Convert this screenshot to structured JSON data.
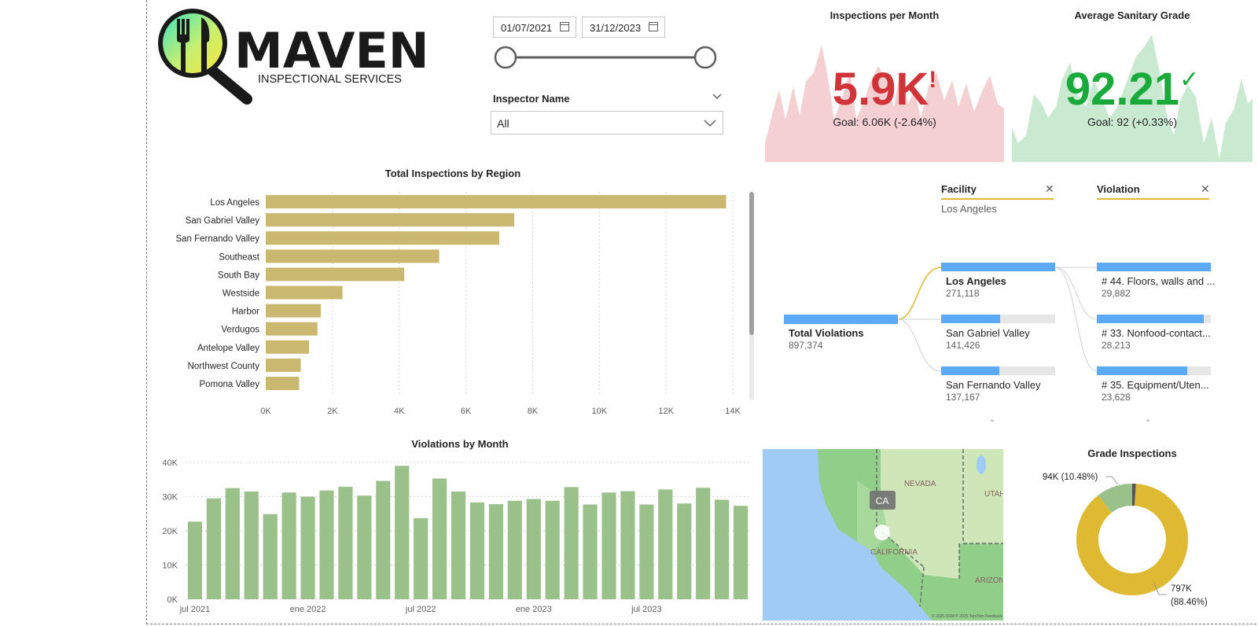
{
  "logo": {
    "name": "MAVEN",
    "tagline": "INSPECTIONAL SERVICES"
  },
  "filters": {
    "date_start": "01/07/2021",
    "date_end": "31/12/2023",
    "inspector_label": "Inspector Name",
    "inspector_value": "All"
  },
  "kpi_inspections": {
    "title": "Inspections per Month",
    "value": "5.9K",
    "status": "!",
    "goal": "Goal: 6.06K (-2.64%)",
    "color": "#d13438",
    "bg": "#f4d0d3"
  },
  "kpi_grade": {
    "title": "Average Sanitary Grade",
    "value": "92.21",
    "status": "✓",
    "goal": "Goal: 92 (+0.33%)",
    "color": "#1aaa3c",
    "bg": "#c9e9d0"
  },
  "decomp": {
    "facility_header": "Facility",
    "facility_filter": "Los Angeles",
    "violation_header": "Violation",
    "root": {
      "label": "Total Violations",
      "value": "897,374"
    },
    "facilities": [
      {
        "label": "Los Angeles",
        "value": "271,118",
        "fill": 1.0
      },
      {
        "label": "San Gabriel Valley",
        "value": "141,426",
        "fill": 0.52
      },
      {
        "label": "San Fernando Valley",
        "value": "137,167",
        "fill": 0.51
      }
    ],
    "violations": [
      {
        "label": "# 44. Floors, walls and ...",
        "value": "29,882",
        "fill": 1.0
      },
      {
        "label": "# 33. Nonfood-contact...",
        "value": "28,213",
        "fill": 0.94
      },
      {
        "label": "# 35. Equipment/Uten...",
        "value": "23,628",
        "fill": 0.79
      }
    ]
  },
  "map": {
    "labels": [
      "NEVADA",
      "UTAH",
      "CALIFORNIA",
      "ARIZON"
    ],
    "marker": "CA",
    "credit": "© 2025 OSM © 2025 TomTom  Feedback"
  },
  "chart_data": [
    {
      "type": "bar",
      "orientation": "horizontal",
      "title": "Total Inspections by Region",
      "categories": [
        "Los Angeles",
        "San Gabriel Valley",
        "San Fernando Valley",
        "Southeast",
        "South Bay",
        "Westside",
        "Harbor",
        "Verdugos",
        "Antelope Valley",
        "Northwest County",
        "Pomona Valley"
      ],
      "values": [
        13800,
        7450,
        7000,
        5200,
        4150,
        2300,
        1650,
        1550,
        1300,
        1050,
        1000
      ],
      "xlim": [
        0,
        14000
      ],
      "xticks": [
        "0K",
        "2K",
        "4K",
        "6K",
        "8K",
        "10K",
        "12K",
        "14K"
      ],
      "color": "#cbb870",
      "grid": true
    },
    {
      "type": "bar",
      "title": "Violations by Month",
      "categories": [
        "jul 2021",
        "ago 2021",
        "sep 2021",
        "oct 2021",
        "nov 2021",
        "dic 2021",
        "ene 2022",
        "feb 2022",
        "mar 2022",
        "abr 2022",
        "may 2022",
        "jun 2022",
        "jul 2022",
        "ago 2022",
        "sep 2022",
        "oct 2022",
        "nov 2022",
        "dic 2022",
        "ene 2023",
        "feb 2023",
        "mar 2023",
        "abr 2023",
        "may 2023",
        "jun 2023",
        "jul 2023",
        "ago 2023",
        "sep 2023",
        "oct 2023",
        "nov 2023",
        "dic 2023"
      ],
      "values": [
        22700,
        29500,
        32500,
        31500,
        24900,
        31200,
        30000,
        31800,
        32900,
        30300,
        34600,
        39000,
        23700,
        35300,
        31500,
        28300,
        27800,
        28800,
        29300,
        28800,
        32800,
        27700,
        31200,
        31600,
        27700,
        32100,
        28000,
        32600,
        29100,
        27300
      ],
      "ylim": [
        0,
        40000
      ],
      "yticks": [
        "0K",
        "10K",
        "20K",
        "30K",
        "40K"
      ],
      "xticks": [
        "jul 2021",
        "ene 2022",
        "jul 2022",
        "ene 2023",
        "jul 2023"
      ],
      "color": "#9bc18b",
      "grid": true
    },
    {
      "type": "pie",
      "title": "Grade Inspections",
      "slices": [
        {
          "value": 797,
          "label": "797K",
          "pct": "(88.46%)",
          "color": "#dfb932"
        },
        {
          "value": 94,
          "label": "94K (10.48%)",
          "color": "#9bc18b"
        },
        {
          "value": 9.6,
          "label": "",
          "color": "#555555"
        }
      ]
    }
  ]
}
